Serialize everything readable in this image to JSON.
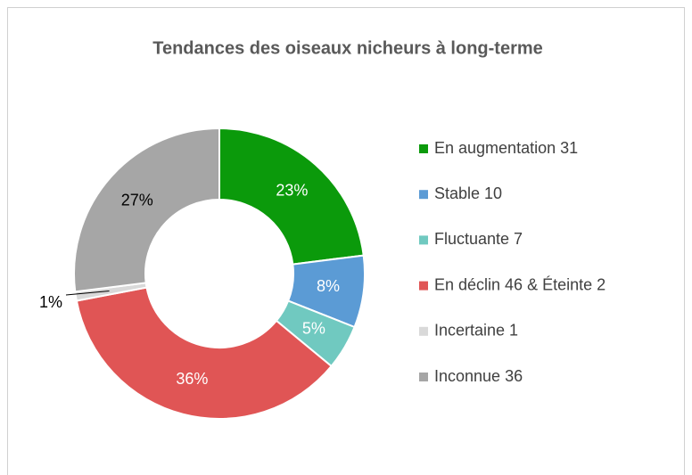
{
  "chart_data": {
    "type": "donut",
    "title": "Tendances des oiseaux nicheurs à long-terme",
    "categories": [
      "En augmentation 31",
      "Stable 10",
      "Fluctuante 7",
      "En déclin 46 & Éteinte 2",
      "Incertaine 1",
      "Inconnue 36"
    ],
    "values": [
      23,
      8,
      5,
      36,
      1,
      27
    ],
    "value_labels": [
      "23%",
      "8%",
      "5%",
      "36%",
      "1%",
      "27%"
    ],
    "colors": [
      "#0b9a0b",
      "#5b9bd5",
      "#70c9c0",
      "#e05555",
      "#d9d9d9",
      "#a6a6a6"
    ],
    "legend": "right"
  }
}
